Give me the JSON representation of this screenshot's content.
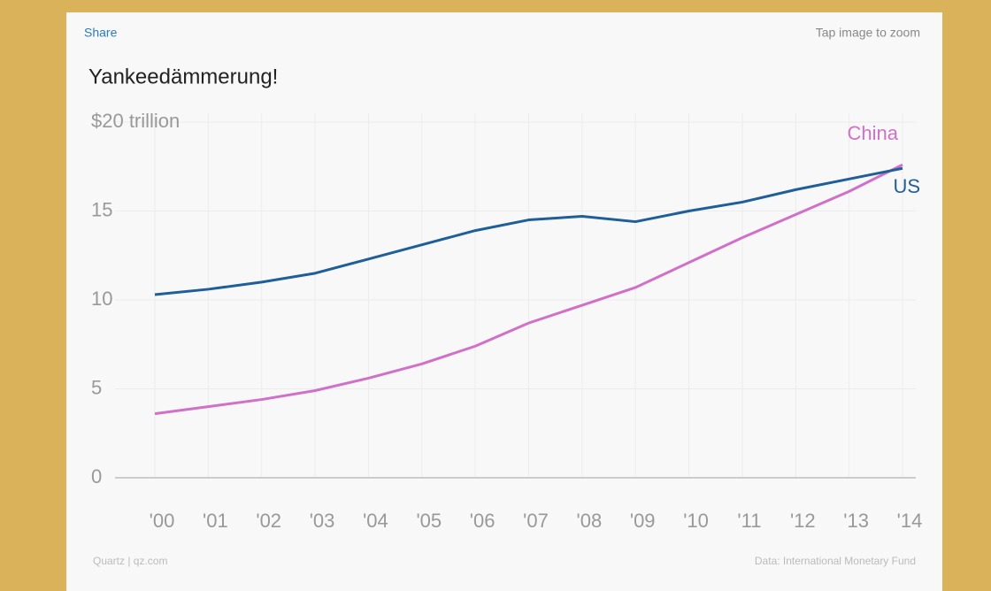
{
  "header": {
    "share": "Share",
    "zoom": "Tap image to zoom"
  },
  "chart_data": {
    "type": "line",
    "title": "Yankeedämmerung!",
    "categories": [
      "'00",
      "'01",
      "'02",
      "'03",
      "'04",
      "'05",
      "'06",
      "'07",
      "'08",
      "'09",
      "'10",
      "'11",
      "'12",
      "'13",
      "'14"
    ],
    "series": [
      {
        "name": "China",
        "color": "#d070c8",
        "values": [
          3.6,
          4.0,
          4.4,
          4.9,
          5.6,
          6.4,
          7.4,
          8.7,
          9.7,
          10.7,
          12.1,
          13.5,
          14.8,
          16.1,
          17.6
        ]
      },
      {
        "name": "US",
        "color": "#1f5f99",
        "values": [
          10.3,
          10.6,
          11.0,
          11.5,
          12.3,
          13.1,
          13.9,
          14.5,
          14.7,
          14.4,
          15.0,
          15.5,
          16.2,
          16.8,
          17.4
        ]
      }
    ],
    "ylim": [
      0,
      20
    ],
    "yticks": [
      0,
      5,
      10,
      15,
      {
        "value": 20,
        "label": "$20 trillion"
      }
    ],
    "grid": true,
    "footer_left": "Quartz | qz.com",
    "footer_right": "Data: International Monetary Fund"
  }
}
